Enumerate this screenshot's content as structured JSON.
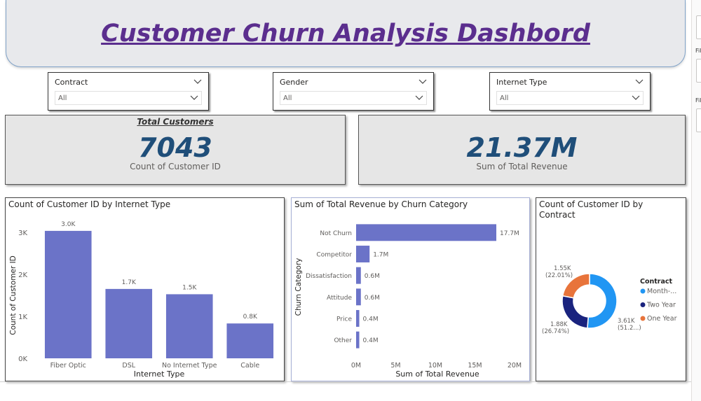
{
  "title": "Customer Churn Analysis Dashbord",
  "slicers": [
    {
      "label": "Contract",
      "value": "All"
    },
    {
      "label": "Gender",
      "value": "All"
    },
    {
      "label": "Internet Type",
      "value": "All"
    }
  ],
  "kpis": {
    "customers": {
      "title": "Total Customers",
      "value": "7043",
      "label": "Count of Customer ID"
    },
    "revenue": {
      "value": "21.37M",
      "label": "Sum of Total Revenue"
    }
  },
  "filter_pane": {
    "label1": "Fil",
    "label2": "Fil"
  },
  "colors": {
    "bar": "#6b73c8",
    "kpi_value": "#1f4e79",
    "title": "#5b2e8e",
    "month": "#2196f3",
    "two_year": "#1a237e",
    "one_year": "#e8743b"
  },
  "chart_data": [
    {
      "type": "bar",
      "title": "Count of Customer ID by Internet Type",
      "xlabel": "Internet Type",
      "ylabel": "Count of Customer ID",
      "categories": [
        "Fiber Optic",
        "DSL",
        "No Internet Type",
        "Cable"
      ],
      "values": [
        3035,
        1652,
        1526,
        830
      ],
      "data_labels": [
        "3.0K",
        "1.7K",
        "1.5K",
        "0.8K"
      ],
      "ylim": [
        0,
        3000
      ],
      "y_ticks": [
        {
          "v": 0,
          "label": "0K"
        },
        {
          "v": 1000,
          "label": "1K"
        },
        {
          "v": 2000,
          "label": "2K"
        },
        {
          "v": 3000,
          "label": "3K"
        }
      ]
    },
    {
      "type": "bar",
      "orientation": "horizontal",
      "title": "Sum of Total Revenue by Churn Category",
      "xlabel": "Sum of Total Revenue",
      "ylabel": "Churn Category",
      "categories": [
        "Not Churn",
        "Competitor",
        "Dissatisfaction",
        "Attitude",
        "Price",
        "Other"
      ],
      "values": [
        17.7,
        1.7,
        0.6,
        0.6,
        0.4,
        0.4
      ],
      "data_labels": [
        "17.7M",
        "1.7M",
        "0.6M",
        "0.6M",
        "0.4M",
        "0.4M"
      ],
      "xlim": [
        0,
        20
      ],
      "x_ticks": [
        {
          "v": 0,
          "label": "0M"
        },
        {
          "v": 5,
          "label": "5M"
        },
        {
          "v": 10,
          "label": "10M"
        },
        {
          "v": 15,
          "label": "15M"
        },
        {
          "v": 20,
          "label": "20M"
        }
      ]
    },
    {
      "type": "pie",
      "donut": true,
      "title": "Count of Customer ID by Contract",
      "legend_title": "Contract",
      "legend_position": "right",
      "slices": [
        {
          "name": "Month-...",
          "value": 3610,
          "label_value": "3.61K",
          "label_pct": "(51.2...)",
          "color": "#2196f3"
        },
        {
          "name": "Two Year",
          "value": 1883,
          "label_value": "1.88K",
          "label_pct": "(26.74%)",
          "color": "#1a237e"
        },
        {
          "name": "One Year",
          "value": 1550,
          "label_value": "1.55K",
          "label_pct": "(22.01%)",
          "color": "#e8743b"
        }
      ]
    }
  ]
}
